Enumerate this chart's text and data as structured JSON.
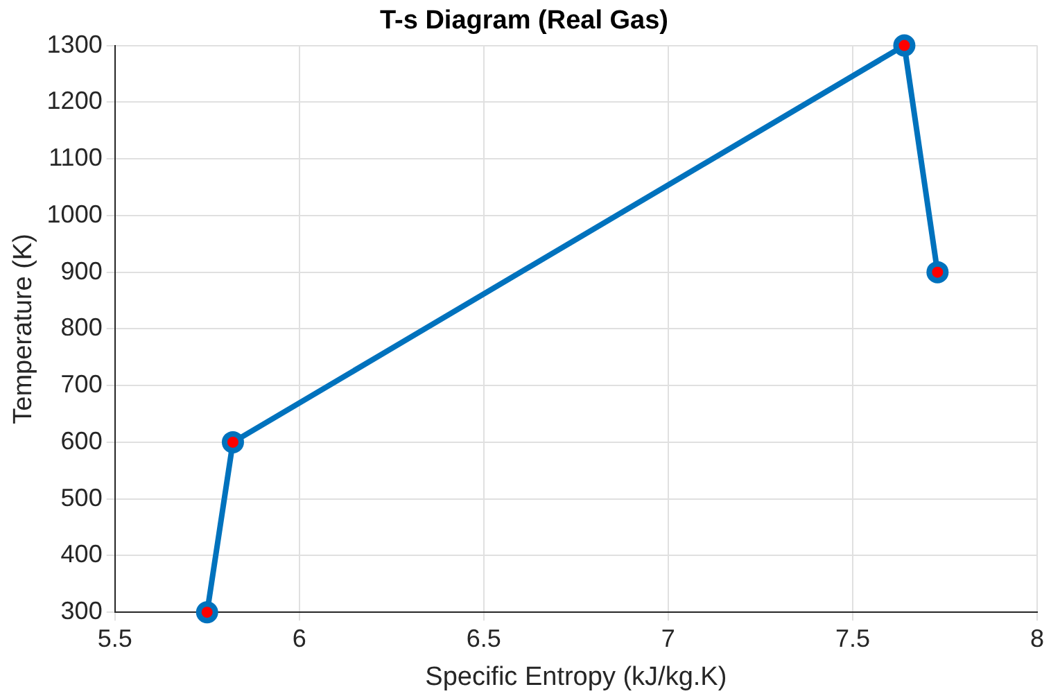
{
  "chart_data": {
    "type": "line",
    "title": "T-s Diagram (Real Gas)",
    "xlabel": "Specific Entropy (kJ/kg.K)",
    "ylabel": "Temperature (K)",
    "x": [
      5.75,
      5.82,
      7.64,
      7.73
    ],
    "series": [
      {
        "color": "#0072bd",
        "colors": [
          "#ff0000",
          "#ff0000",
          "#ff0000",
          "#ff0000"
        ],
        "values": [
          300,
          600,
          1300,
          900
        ]
      }
    ],
    "xlim": [
      5.5,
      8
    ],
    "xticks": [
      5.5,
      6,
      6.5,
      7,
      7.5,
      8
    ],
    "ylim": [
      300,
      1300
    ],
    "yticks": [
      300,
      400,
      500,
      600,
      700,
      800,
      900,
      1000,
      1100,
      1200,
      1300
    ],
    "grid": true,
    "legend": false,
    "marker": "circle",
    "line_style": "solid"
  }
}
